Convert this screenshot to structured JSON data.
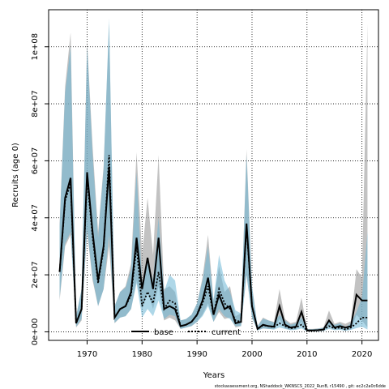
{
  "chart_data": {
    "type": "line",
    "title": "",
    "xlabel": "Years",
    "ylabel": "Recruits (age 0)",
    "xlim": [
      1963,
      2023
    ],
    "ylim": [
      -3000000,
      113000000
    ],
    "x_ticks": [
      1970,
      1980,
      1990,
      2000,
      2010,
      2020
    ],
    "y_ticks": [
      0,
      20000000,
      40000000,
      60000000,
      80000000,
      100000000
    ],
    "y_tick_labels": [
      "0e+00",
      "2e+07",
      "4e+07",
      "6e+07",
      "8e+07",
      "1e+08"
    ],
    "grid": true,
    "legend_position": "bottom-center",
    "footer": "stockassessment.org, NShaddock_WKNSCS_2022_RunB, r15490 , git: ec2c2a0c6dde",
    "x": [
      1965,
      1966,
      1967,
      1968,
      1969,
      1970,
      1971,
      1972,
      1973,
      1974,
      1975,
      1976,
      1977,
      1978,
      1979,
      1980,
      1981,
      1982,
      1983,
      1984,
      1985,
      1986,
      1987,
      1988,
      1989,
      1990,
      1991,
      1992,
      1993,
      1994,
      1995,
      1996,
      1997,
      1998,
      1999,
      2000,
      2001,
      2002,
      2003,
      2004,
      2005,
      2006,
      2007,
      2008,
      2009,
      2010,
      2011,
      2012,
      2013,
      2014,
      2015,
      2016,
      2017,
      2018,
      2019,
      2020,
      2021
    ],
    "series": [
      {
        "name": "base",
        "color": "#000000",
        "band_color": "#999999",
        "style": "solid",
        "values": [
          21000000,
          47000000,
          54000000,
          3000000,
          8000000,
          56000000,
          35000000,
          18000000,
          30000000,
          58000000,
          5000000,
          8000000,
          9000000,
          14000000,
          33000000,
          15000000,
          26000000,
          15000000,
          33000000,
          8000000,
          9000000,
          8000000,
          2000000,
          2500000,
          3500000,
          6000000,
          11000000,
          19000000,
          6000000,
          13000000,
          8000000,
          9000000,
          3000000,
          3500000,
          38000000,
          9000000,
          1000000,
          2500000,
          2000000,
          1800000,
          9000000,
          2500000,
          1500000,
          1800000,
          7000000,
          500000,
          500000,
          600000,
          800000,
          4000000,
          1500000,
          2000000,
          1500000,
          2000000,
          13000000,
          11000000,
          11000000
        ],
        "lower": [
          11000000,
          30000000,
          34000000,
          1500000,
          4000000,
          35000000,
          18000000,
          9000000,
          15000000,
          30000000,
          3000000,
          5000000,
          5500000,
          8000000,
          18000000,
          8000000,
          14000000,
          8000000,
          16000000,
          4000000,
          5000000,
          4000000,
          1000000,
          1500000,
          2000000,
          3500000,
          6000000,
          10000000,
          3500000,
          7000000,
          4500000,
          5000000,
          1500000,
          2000000,
          20000000,
          5000000,
          500000,
          1200000,
          1000000,
          900000,
          4500000,
          1200000,
          700000,
          900000,
          3500000,
          200000,
          200000,
          250000,
          350000,
          2000000,
          700000,
          900000,
          600000,
          800000,
          6000000,
          4000000,
          1500000
        ],
        "upper": [
          38000000,
          86000000,
          105000000,
          5500000,
          15000000,
          102000000,
          65000000,
          35000000,
          58000000,
          108000000,
          9000000,
          14000000,
          16000000,
          24000000,
          63000000,
          27000000,
          47000000,
          27000000,
          62000000,
          15000000,
          16000000,
          14000000,
          4000000,
          4500000,
          6000000,
          10000000,
          19000000,
          34000000,
          11000000,
          23000000,
          14000000,
          16000000,
          5500000,
          6500000,
          64000000,
          16000000,
          2000000,
          5000000,
          4000000,
          3500000,
          15000000,
          4500000,
          3000000,
          3500000,
          12000000,
          1000000,
          1000000,
          1200000,
          1500000,
          7500000,
          2800000,
          3500000,
          2800000,
          3800000,
          22000000,
          19000000,
          108000000
        ]
      },
      {
        "name": "current",
        "color": "#000000",
        "band_color": "#6bb7d6",
        "style": "dotted",
        "values": [
          21000000,
          46000000,
          52000000,
          3000000,
          8000000,
          54000000,
          33000000,
          17000000,
          29000000,
          62000000,
          5000000,
          8000000,
          9000000,
          13000000,
          30000000,
          9000000,
          14000000,
          10000000,
          21000000,
          8000000,
          11000000,
          10000000,
          2000000,
          2500000,
          3500000,
          6000000,
          10000000,
          16000000,
          6000000,
          15000000,
          10000000,
          8000000,
          4000000,
          3500000,
          37000000,
          9000000,
          1000000,
          2300000,
          2000000,
          1600000,
          3000000,
          2000000,
          1200000,
          1500000,
          2500000,
          400000,
          400000,
          500000,
          700000,
          2000000,
          1200000,
          1500000,
          800000,
          1500000,
          3000000,
          5000000,
          5000000
        ],
        "lower": [
          12000000,
          31000000,
          35000000,
          1800000,
          4500000,
          36000000,
          19000000,
          9000000,
          15000000,
          34000000,
          3200000,
          5000000,
          5500000,
          8000000,
          17000000,
          5000000,
          8000000,
          5500000,
          11000000,
          4500000,
          6000000,
          5500000,
          1000000,
          1500000,
          2000000,
          3500000,
          5500000,
          9000000,
          3500000,
          8000000,
          5500000,
          4500000,
          2000000,
          2000000,
          20000000,
          5000000,
          500000,
          1200000,
          1000000,
          800000,
          1500000,
          1000000,
          600000,
          700000,
          1200000,
          150000,
          150000,
          200000,
          300000,
          1000000,
          600000,
          700000,
          350000,
          700000,
          1300000,
          1800000,
          800000
        ],
        "upper": [
          37000000,
          84000000,
          100000000,
          5500000,
          15000000,
          100000000,
          62000000,
          33000000,
          57000000,
          110000000,
          9000000,
          14000000,
          15500000,
          22000000,
          56000000,
          17000000,
          25000000,
          18000000,
          40000000,
          14000000,
          20000000,
          18000000,
          4000000,
          4500000,
          6000000,
          10000000,
          18000000,
          30000000,
          11000000,
          27000000,
          18000000,
          14000000,
          7500000,
          6500000,
          62000000,
          16000000,
          2000000,
          4600000,
          4000000,
          3200000,
          6000000,
          4000000,
          2500000,
          3000000,
          5000000,
          900000,
          900000,
          1100000,
          1400000,
          4000000,
          2400000,
          3000000,
          1600000,
          3000000,
          7000000,
          12000000,
          35000000
        ]
      }
    ]
  }
}
